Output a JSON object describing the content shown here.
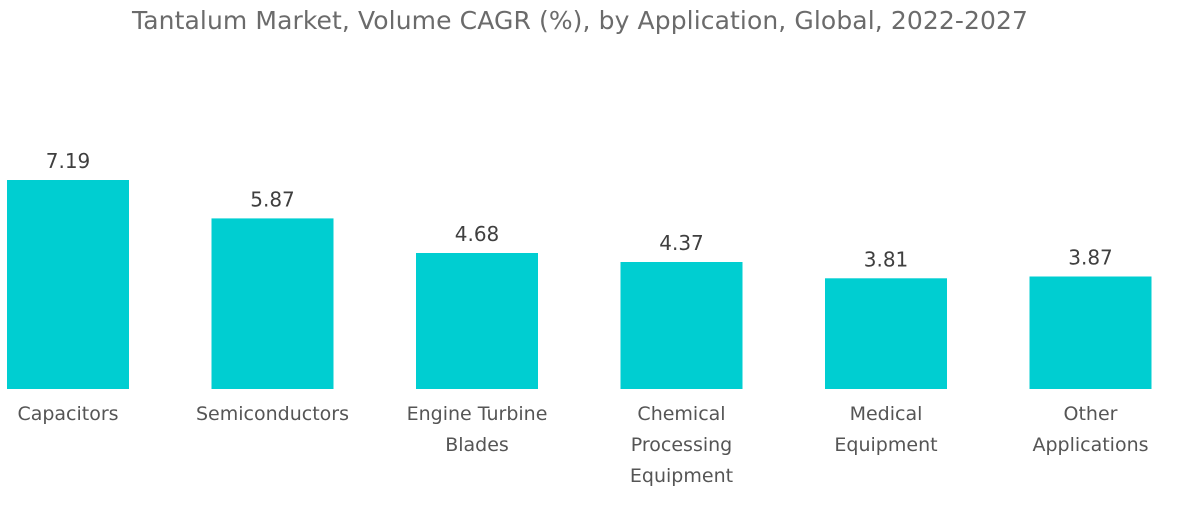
{
  "chart_data": {
    "type": "bar",
    "title": "Tantalum Market, Volume CAGR (%), by Application, Global, 2022-2027",
    "categories": [
      [
        "Capacitors"
      ],
      [
        "Semiconductors"
      ],
      [
        "Engine Turbine",
        "Blades"
      ],
      [
        "Chemical",
        "Processing",
        "Equipment"
      ],
      [
        "Medical",
        "Equipment"
      ],
      [
        "Other",
        "Applications"
      ]
    ],
    "values": [
      7.19,
      5.87,
      4.68,
      4.37,
      3.81,
      3.87
    ],
    "value_labels": [
      "7.19",
      "5.87",
      "4.68",
      "4.37",
      "3.81",
      "3.87"
    ],
    "xlabel": "",
    "ylabel": "",
    "ylim": [
      0,
      7.19
    ],
    "grid": false,
    "legend": "none",
    "bar_color": "#00CED1"
  }
}
